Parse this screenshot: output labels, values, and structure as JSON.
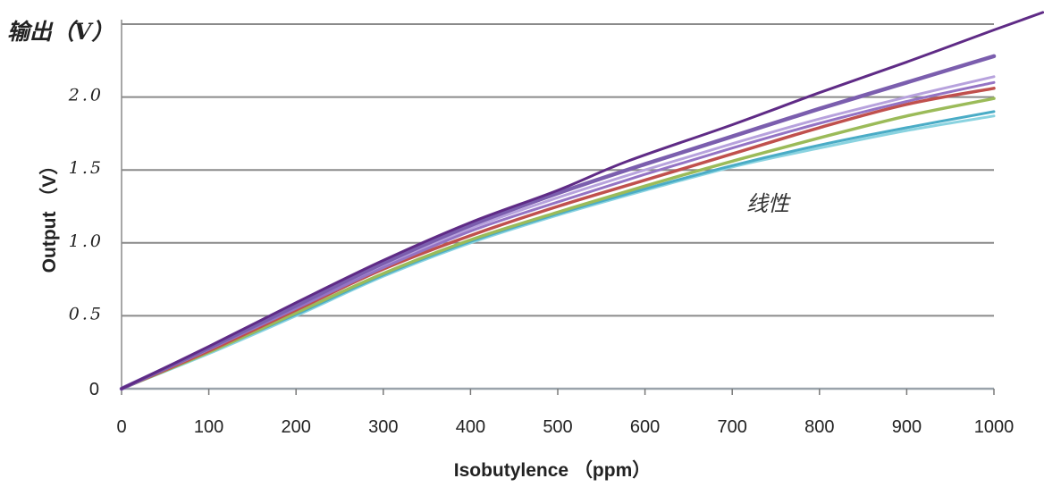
{
  "chart_data": {
    "type": "line",
    "top_label": "输出（V）",
    "ylabel": "Output （V）",
    "xlabel": "Isobutylence （ppm）",
    "annotation": "线性",
    "xlim": [
      0,
      1000
    ],
    "ylim": [
      0,
      2.5
    ],
    "grid": true,
    "grid_lines_y": [
      0.5,
      1.0,
      1.5,
      2.0,
      2.5
    ],
    "legend": "none",
    "xticks": [
      {
        "value": 0,
        "label": "0"
      },
      {
        "value": 100,
        "label": "100"
      },
      {
        "value": 200,
        "label": "200"
      },
      {
        "value": 300,
        "label": "300"
      },
      {
        "value": 400,
        "label": "400"
      },
      {
        "value": 500,
        "label": "500"
      },
      {
        "value": 600,
        "label": "600"
      },
      {
        "value": 700,
        "label": "700"
      },
      {
        "value": 800,
        "label": "800"
      },
      {
        "value": 900,
        "label": "900"
      },
      {
        "value": 1000,
        "label": "1000"
      }
    ],
    "yticks": [
      {
        "value": 0,
        "label": "0"
      },
      {
        "value": 0.5,
        "label": "0.5"
      },
      {
        "value": 1.0,
        "label": "1.0"
      },
      {
        "value": 1.5,
        "label": "1.5"
      },
      {
        "value": 2.0,
        "label": "2.0"
      }
    ],
    "colors": {
      "grid": "#8a8a8a",
      "axis": "#9aa3ab",
      "tick": "#7a7a7a"
    },
    "x": [
      0,
      100,
      200,
      300,
      400,
      500,
      600,
      700,
      800,
      900,
      1000
    ],
    "series": [
      {
        "color": "#8ad3e0",
        "values": [
          0,
          0.24,
          0.5,
          0.77,
          1.0,
          1.19,
          1.36,
          1.52,
          1.65,
          1.77,
          1.87
        ]
      },
      {
        "color": "#4aacc6",
        "values": [
          0,
          0.25,
          0.51,
          0.78,
          1.01,
          1.2,
          1.37,
          1.53,
          1.67,
          1.79,
          1.9
        ]
      },
      {
        "color": "#9bbb59",
        "values": [
          0,
          0.25,
          0.52,
          0.79,
          1.02,
          1.21,
          1.39,
          1.56,
          1.72,
          1.87,
          1.99
        ]
      },
      {
        "color": "#c0504d",
        "values": [
          0,
          0.26,
          0.54,
          0.82,
          1.05,
          1.25,
          1.43,
          1.61,
          1.79,
          1.95,
          2.06
        ]
      },
      {
        "color": "#b7a2dd",
        "values": [
          0,
          0.27,
          0.56,
          0.84,
          1.1,
          1.31,
          1.5,
          1.68,
          1.85,
          2.0,
          2.14
        ]
      },
      {
        "color": "#9473c4",
        "values": [
          0,
          0.27,
          0.55,
          0.83,
          1.08,
          1.28,
          1.47,
          1.65,
          1.82,
          1.97,
          2.1
        ]
      },
      {
        "color": "#7b5eae",
        "values": [
          0,
          0.28,
          0.57,
          0.86,
          1.12,
          1.34,
          1.54,
          1.73,
          1.92,
          2.1,
          2.28
        ]
      },
      {
        "color": "#5f2b86",
        "x": [
          0,
          100,
          200,
          300,
          400,
          500,
          580,
          700,
          800,
          900,
          1000,
          1056
        ],
        "values": [
          0,
          0.29,
          0.59,
          0.88,
          1.14,
          1.36,
          1.56,
          1.81,
          2.03,
          2.24,
          2.46,
          2.58
        ]
      }
    ]
  }
}
